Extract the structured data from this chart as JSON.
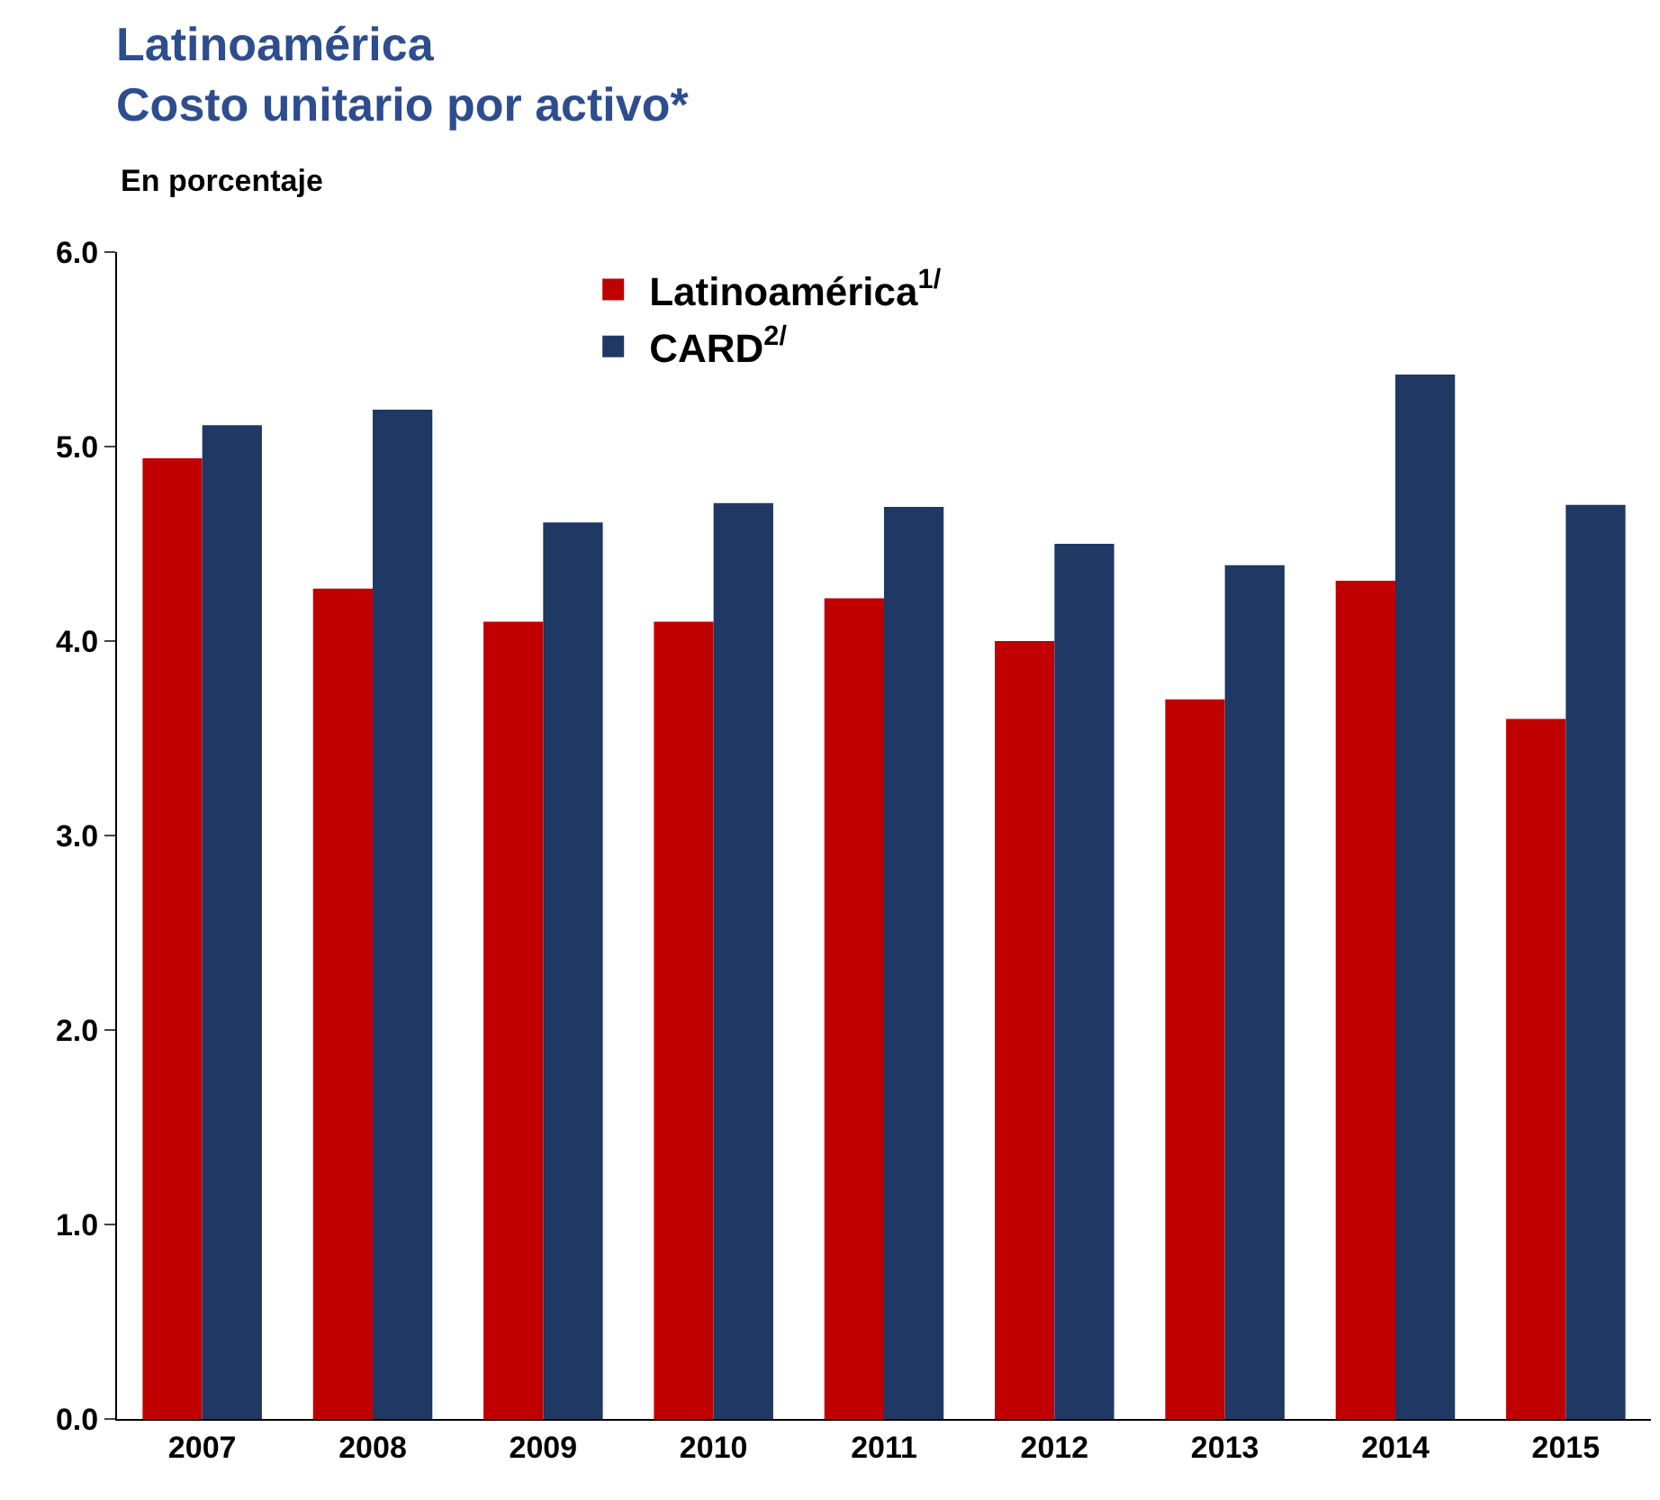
{
  "chart_data": {
    "type": "bar",
    "title": "Latinoamérica\nCosto unitario por activo*",
    "subtitle": "En porcentaje",
    "categories": [
      "2007",
      "2008",
      "2009",
      "2010",
      "2011",
      "2012",
      "2013",
      "2014",
      "2015"
    ],
    "series": [
      {
        "name": "Latinoamérica$^{1/}$",
        "color": "#c00000",
        "values": [
          4.94,
          4.27,
          4.1,
          4.1,
          4.22,
          4.0,
          3.7,
          4.31,
          3.6
        ]
      },
      {
        "name": "CARD$^{2/}$",
        "color": "#203864",
        "values": [
          5.11,
          5.19,
          4.61,
          4.71,
          4.69,
          4.5,
          4.39,
          5.37,
          4.7
        ]
      }
    ],
    "ylim": [
      0,
      6
    ],
    "yticks": [
      {
        "value": 0,
        "label": "0.0"
      },
      {
        "value": 1,
        "label": "1.0"
      },
      {
        "value": 2,
        "label": "2.0"
      },
      {
        "value": 3,
        "label": "3.0"
      },
      {
        "value": 4,
        "label": "4.0"
      },
      {
        "value": 5,
        "label": "5.0"
      },
      {
        "value": 6,
        "label": "6.0"
      }
    ],
    "legend": "top"
  }
}
